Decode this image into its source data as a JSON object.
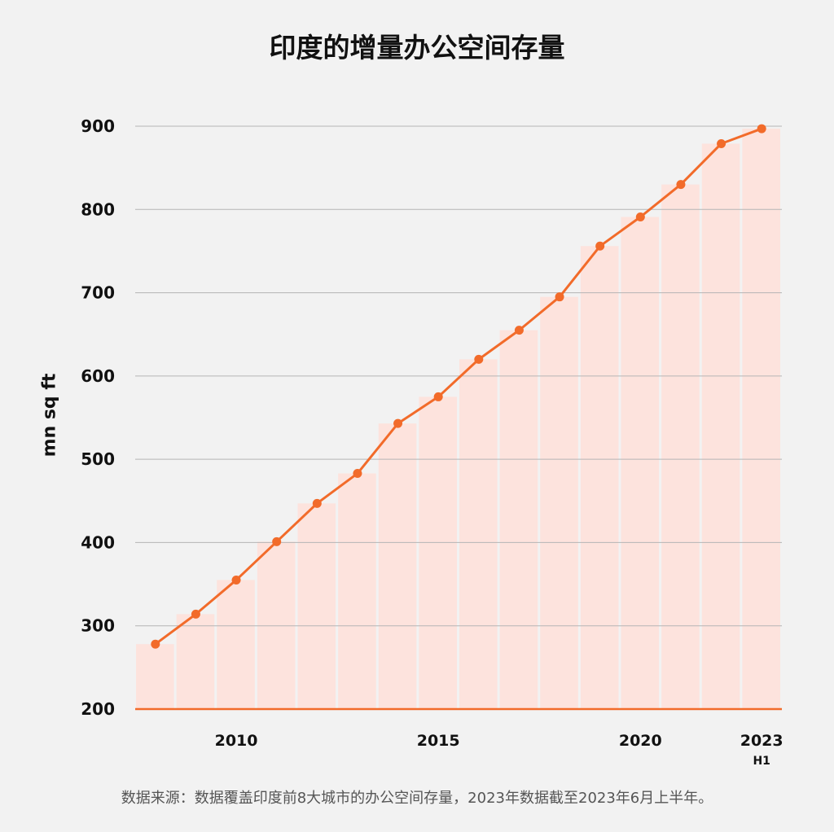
{
  "title": "印度的增量办公空间存量",
  "footnote": "数据来源：数据覆盖印度前8大城市的办公空间存量，2023年数据截至2023年6月上半年。",
  "colors": {
    "line": "#f26b2a",
    "bar": "#fde3dd",
    "grid": "#b5b5b5",
    "baseline": "#f26b2a"
  },
  "chart_data": {
    "type": "line",
    "title": "印度的增量办公空间存量",
    "xlabel": "",
    "ylabel": "mn sq ft",
    "ylim": [
      200,
      900
    ],
    "y_ticks": [
      "200",
      "300",
      "400",
      "500",
      "600",
      "700",
      "800",
      "900"
    ],
    "grid": true,
    "categories": [
      "2008",
      "2009",
      "2010",
      "2011",
      "2012",
      "2013",
      "2014",
      "2015",
      "2016",
      "2017",
      "2018",
      "2019",
      "2020",
      "2021",
      "2022",
      "2023 H1"
    ],
    "x_tick_labels": [
      {
        "category": "2010",
        "label": "2010",
        "sub": ""
      },
      {
        "category": "2015",
        "label": "2015",
        "sub": ""
      },
      {
        "category": "2020",
        "label": "2020",
        "sub": ""
      },
      {
        "category": "2023 H1",
        "label": "2023",
        "sub": "H1"
      }
    ],
    "series": [
      {
        "values": [
          278,
          314,
          355,
          401,
          447,
          483,
          543,
          575,
          620,
          655,
          695,
          756,
          791,
          830,
          879,
          897
        ]
      }
    ]
  }
}
